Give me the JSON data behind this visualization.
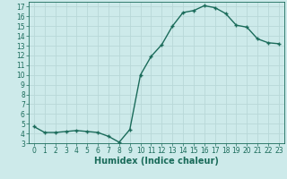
{
  "x": [
    0,
    1,
    2,
    3,
    4,
    5,
    6,
    7,
    8,
    9,
    10,
    11,
    12,
    13,
    14,
    15,
    16,
    17,
    18,
    19,
    20,
    21,
    22,
    23
  ],
  "y": [
    4.7,
    4.1,
    4.1,
    4.2,
    4.3,
    4.2,
    4.1,
    3.7,
    3.1,
    4.4,
    10.0,
    11.9,
    13.1,
    15.0,
    16.4,
    16.6,
    17.1,
    16.9,
    16.3,
    15.1,
    14.9,
    13.7,
    13.3,
    13.2
  ],
  "line_color": "#1a6b5a",
  "bg_color": "#cdeaea",
  "grid_color": "#b8d8d8",
  "xlabel": "Humidex (Indice chaleur)",
  "xlim": [
    -0.5,
    23.5
  ],
  "ylim": [
    3.0,
    17.5
  ],
  "yticks": [
    3,
    4,
    5,
    6,
    7,
    8,
    9,
    10,
    11,
    12,
    13,
    14,
    15,
    16,
    17
  ],
  "xticks": [
    0,
    1,
    2,
    3,
    4,
    5,
    6,
    7,
    8,
    9,
    10,
    11,
    12,
    13,
    14,
    15,
    16,
    17,
    18,
    19,
    20,
    21,
    22,
    23
  ],
  "marker": "+",
  "marker_size": 3.5,
  "line_width": 1.0,
  "xlabel_fontsize": 7,
  "tick_fontsize": 5.5
}
